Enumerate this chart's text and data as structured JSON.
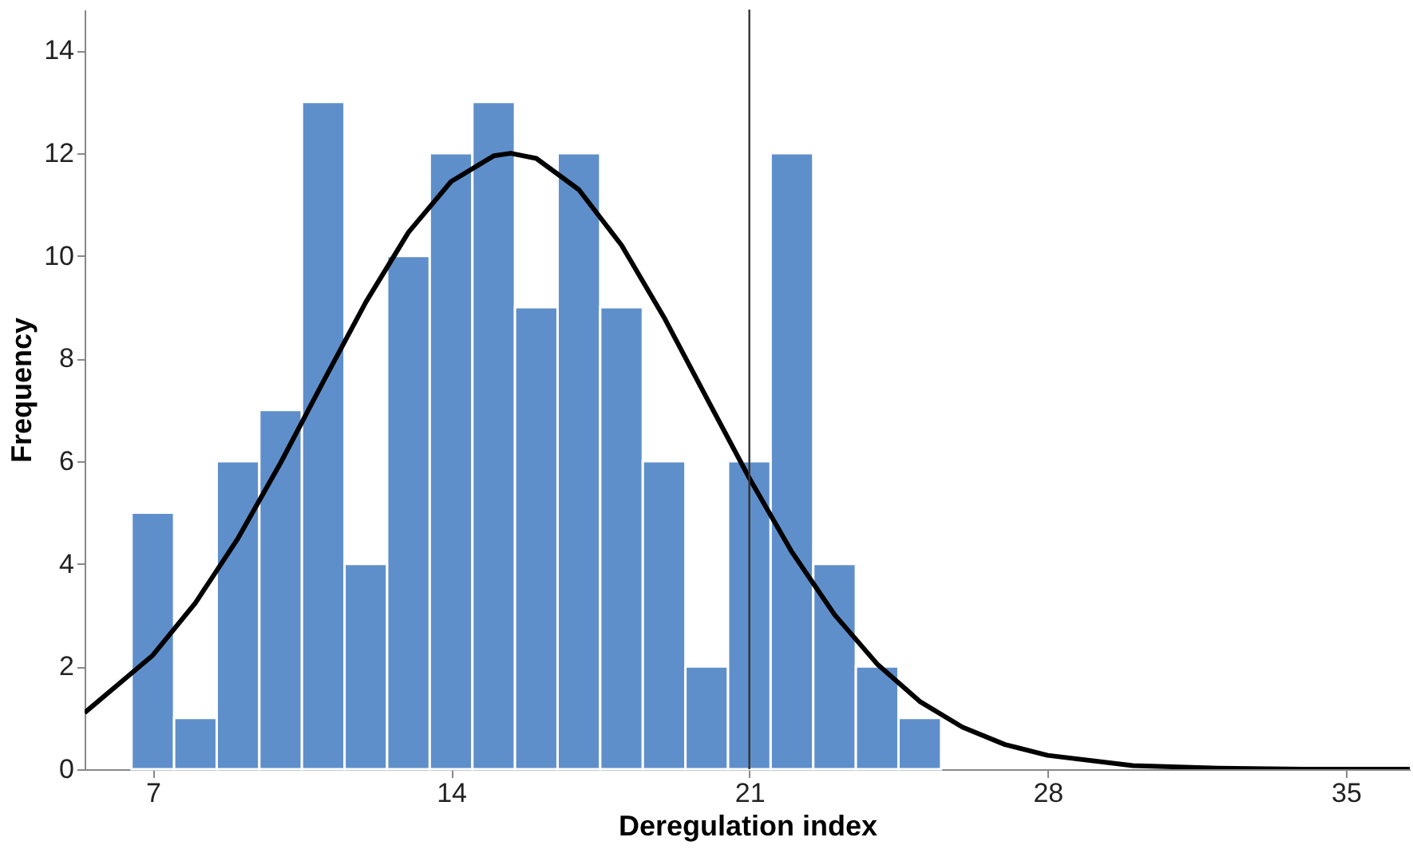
{
  "chart_data": {
    "type": "histogram",
    "xlabel": "Deregulation index",
    "ylabel": "Frequency",
    "color": "#5f8fcb",
    "bins": [
      6.5,
      7.5,
      8.5,
      9.5,
      10.5,
      11.5,
      12.5,
      13.5,
      14.5,
      15.5,
      16.5,
      17.5,
      18.5,
      19.5,
      20.5,
      21.5,
      22.5,
      23.5,
      24.5,
      25.5
    ],
    "values": [
      5,
      1,
      6,
      7,
      13,
      4,
      10,
      12,
      13,
      9,
      12,
      9,
      6,
      2,
      6,
      12,
      4,
      2,
      1
    ],
    "series": [
      {
        "type": "line",
        "color": "#000000",
        "x": [
          5.4,
          7,
          8,
          9,
          10,
          11,
          12,
          13,
          14,
          15,
          15.4,
          16,
          17,
          18,
          19,
          20,
          21,
          22,
          23,
          24,
          25,
          26,
          27,
          28,
          30,
          32,
          34,
          36.5
        ],
        "values": [
          1.1,
          2.22,
          3.24,
          4.5,
          5.97,
          7.55,
          9.1,
          10.46,
          11.45,
          11.95,
          12,
          11.9,
          11.29,
          10.21,
          8.8,
          7.23,
          5.67,
          4.23,
          3.01,
          2.05,
          1.32,
          0.82,
          0.48,
          0.27,
          0.07,
          0.02,
          0,
          0
        ]
      }
    ],
    "ref_lines": [
      {
        "axis": "x",
        "value": 21,
        "color": "#333333"
      }
    ],
    "xlim": [
      5.4,
      36.5
    ],
    "xticks": [
      7,
      14,
      21,
      28,
      35
    ],
    "ylim": [
      0,
      14.8
    ],
    "yticks": [
      0,
      2,
      4,
      6,
      8,
      10,
      12,
      14
    ],
    "grid": false
  }
}
